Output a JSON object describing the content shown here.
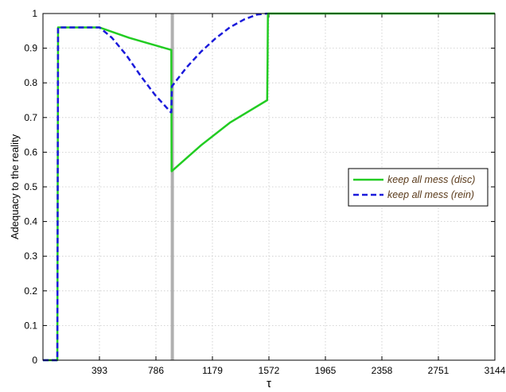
{
  "chart_data": {
    "type": "line",
    "title": "",
    "xlabel": "τ",
    "ylabel": "Adequacy to the reality",
    "xlim": [
      0,
      3144
    ],
    "ylim": [
      0,
      1
    ],
    "xticks": [
      393,
      786,
      1179,
      1572,
      1965,
      2358,
      2751,
      3144
    ],
    "yticks": [
      0,
      0.1,
      0.2,
      0.3,
      0.4,
      0.5,
      0.6,
      0.7,
      0.8,
      0.9,
      1
    ],
    "grid": true,
    "legend_position": "right",
    "vertical_marker_x": 900,
    "colors": {
      "disc": "#22cc22",
      "rein": "#1a1adb",
      "marker": "#b0b0b0"
    },
    "series": [
      {
        "name": "keep all mess (disc)",
        "style": "solid",
        "points": [
          [
            0,
            0
          ],
          [
            100,
            0
          ],
          [
            105,
            0.96
          ],
          [
            393,
            0.96
          ],
          [
            600,
            0.93
          ],
          [
            893,
            0.895
          ],
          [
            895,
            0.545
          ],
          [
            1100,
            0.62
          ],
          [
            1300,
            0.685
          ],
          [
            1560,
            0.75
          ],
          [
            1563,
            0.875
          ],
          [
            1565,
            1
          ],
          [
            3144,
            1
          ]
        ]
      },
      {
        "name": "keep all mess (rein)",
        "style": "dashed",
        "points": [
          [
            0,
            0
          ],
          [
            100,
            0
          ],
          [
            105,
            0.96
          ],
          [
            393,
            0.96
          ],
          [
            480,
            0.93
          ],
          [
            580,
            0.88
          ],
          [
            680,
            0.82
          ],
          [
            780,
            0.765
          ],
          [
            890,
            0.715
          ],
          [
            893,
            0.715
          ],
          [
            897,
            0.79
          ],
          [
            1000,
            0.845
          ],
          [
            1100,
            0.89
          ],
          [
            1200,
            0.928
          ],
          [
            1300,
            0.96
          ],
          [
            1400,
            0.983
          ],
          [
            1490,
            0.997
          ],
          [
            1560,
            1
          ]
        ]
      }
    ]
  }
}
